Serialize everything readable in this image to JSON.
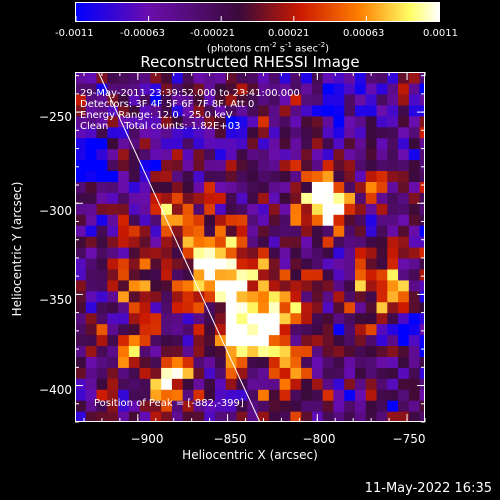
{
  "colorbar": {
    "ticks": [
      "-0.0011",
      "-0.00063",
      "-0.00021",
      "0.00021",
      "0.00063",
      "0.0011"
    ],
    "unit_a": "(photons cm",
    "unit_b": "-2",
    "unit_c": " s",
    "unit_d": "-1",
    "unit_e": " asec",
    "unit_f": "-2",
    "unit_g": ")"
  },
  "chart_data": {
    "type": "heatmap",
    "title": "Reconstructed RHESSI Image",
    "xlabel": "Heliocentric X (arcsec)",
    "ylabel": "Heliocentric Y (arcsec)",
    "xlim": [
      -935,
      -740
    ],
    "ylim": [
      -420,
      -228
    ],
    "xticks": [
      -900,
      -850,
      -800,
      -750
    ],
    "xtick_labels": [
      "−900",
      "−850",
      "−800",
      "−750"
    ],
    "yticks": [
      -250,
      -300,
      -350,
      -400
    ],
    "ytick_labels": [
      "−250",
      "−300",
      "−350",
      "−400"
    ],
    "color_range": [
      -0.0011,
      0.0011
    ],
    "colormap": [
      "#0000ff",
      "#6a0dad",
      "#3a0a3a",
      "#cc1a00",
      "#ff7f00",
      "#ffff66",
      "#ffffff"
    ],
    "annotations": [
      "29-May-2011 23:39:52.000 to 23:41:00.000",
      "Detectors: 3F 4F 5F 6F 7F 8F, Att 0",
      "Energy Range: 12.0 - 25.0 keV",
      "Clean     Total counts: 1.82E+03"
    ],
    "peak_label": "Position of Peak = [-882,-399]",
    "peak_position": [
      -882,
      -399
    ],
    "limb_line": [
      [
        -922,
        -228
      ],
      [
        -832,
        -420
      ]
    ],
    "emission_sources": [
      {
        "x": -855,
        "y": -335,
        "peak": 1.0,
        "radius": 14
      },
      {
        "x": -840,
        "y": -372,
        "peak": 0.95,
        "radius": 13
      },
      {
        "x": -795,
        "y": -300,
        "peak": 0.9,
        "radius": 12
      },
      {
        "x": -820,
        "y": -355,
        "peak": 0.65,
        "radius": 14
      },
      {
        "x": -765,
        "y": -345,
        "peak": 0.8,
        "radius": 11
      },
      {
        "x": -882,
        "y": -399,
        "peak": 0.75,
        "radius": 9
      },
      {
        "x": -902,
        "y": -340,
        "peak": 0.55,
        "radius": 10
      },
      {
        "x": -880,
        "y": -305,
        "peak": 0.55,
        "radius": 9
      },
      {
        "x": -905,
        "y": -380,
        "peak": 0.45,
        "radius": 10
      },
      {
        "x": -810,
        "y": -400,
        "peak": 0.4,
        "radius": 12
      },
      {
        "x": -760,
        "y": -290,
        "peak": 0.25,
        "radius": 9
      }
    ],
    "negative_regions": [
      {
        "x": -928,
        "y": -275,
        "depth": 0.9,
        "radius": 8
      },
      {
        "x": -745,
        "y": -370,
        "depth": 0.55,
        "radius": 7
      },
      {
        "x": -790,
        "y": -250,
        "depth": 0.35,
        "radius": 10
      }
    ]
  },
  "timestamp": "11-May-2022 16:35"
}
